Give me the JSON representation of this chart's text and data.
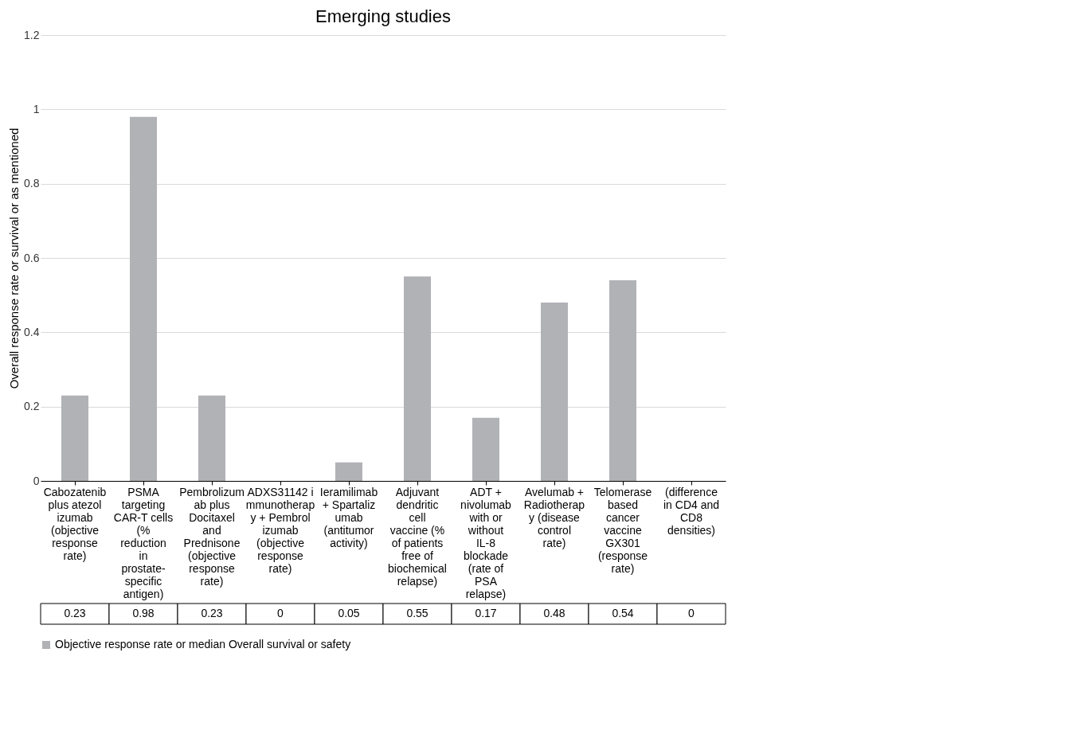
{
  "chart_data": {
    "type": "bar",
    "title": "Emerging studies",
    "ylabel": "Overall response rate or survival or as mentioned",
    "categories": [
      "Cabozatenib plus atezolizumab (objective response rate)",
      "PSMA targeting CAR-T cells (% reduction in prostate-specific antigen)",
      "Pembrolizumab plus Docitaxel and Prednisone (objective response rate)",
      "ADXS31142 immunotherapy + Pembrolizumab (objective response rate)",
      "Ieramilimab + Spartalizumab (antitumor activity)",
      "Adjuvant dendritic cell vaccine (% of patients free of biochemical relapse)",
      "ADT + nivolumab with or without IL-8 blockade (rate of PSA relapse)",
      "Avelumab + Radiotherapy (disease control rate)",
      "Telomerase based cancer vaccine GX301 (response rate)",
      "(difference in CD4 and CD8 densities)"
    ],
    "series": [
      {
        "name": "Objective response rate or median Overall survival or safety",
        "color": "#b1b2b6",
        "values": [
          0.23,
          0.98,
          0.23,
          0,
          0.05,
          0.55,
          0.17,
          0.48,
          0.54,
          0
        ]
      }
    ],
    "ylim": [
      0,
      1.2
    ],
    "yticks": [
      0,
      0.2,
      0.4,
      0.6,
      0.8,
      1,
      1.2
    ],
    "grid": "y",
    "legend": "bottom",
    "data_labels": true
  }
}
